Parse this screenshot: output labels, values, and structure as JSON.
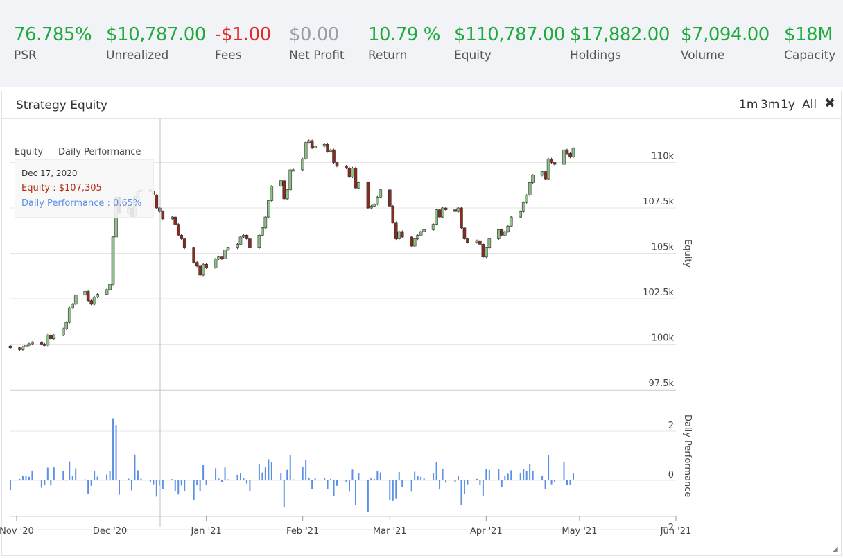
{
  "stats": [
    {
      "value": "76.785%",
      "label": "PSR",
      "color": "#1faa3d"
    },
    {
      "value": "$10,787.00",
      "label": "Unrealized",
      "color": "#1faa3d"
    },
    {
      "value": "-$1.00",
      "label": "Fees",
      "color": "#e02b2b"
    },
    {
      "value": "$0.00",
      "label": "Net Profit",
      "color": "#9aa0a6"
    },
    {
      "value": "10.79 %",
      "label": "Return",
      "color": "#1faa3d"
    },
    {
      "value": "$110,787.00",
      "label": "Equity",
      "color": "#1faa3d"
    },
    {
      "value": "$17,882.00",
      "label": "Holdings",
      "color": "#1faa3d"
    },
    {
      "value": "$7,094.00",
      "label": "Volume",
      "color": "#1faa3d"
    },
    {
      "value": "$18M",
      "label": "Capacity",
      "color": "#1faa3d"
    }
  ],
  "panel": {
    "title": "Strategy Equity",
    "ranges": [
      "1m",
      "3m",
      "1y",
      "All"
    ],
    "close": "✖"
  },
  "tooltip": {
    "date": "Dec 17, 2020",
    "equity": "Equity : $107,305",
    "daily": "Daily Performance : 0.65%"
  },
  "legend": [
    "Equity",
    "Daily Performance"
  ],
  "colors": {
    "up_candle": "#8fbf8a",
    "down_candle": "#8b2a1e",
    "wick": "#333333",
    "daily_bar": "#5c8fe6",
    "grid": "#e6e6e6"
  },
  "chart_data": [
    {
      "type": "candlestick",
      "ylabel": "Equity",
      "yticks": [
        "97.5k",
        "100k",
        "102.5k",
        "105k",
        "107.5k",
        "110k"
      ],
      "ylim": [
        97500,
        112500
      ],
      "xticks": [
        "Nov '20",
        "Dec '20",
        "Jan '21",
        "Feb '21",
        "Mar '21",
        "Apr '21",
        "May '21",
        "Jun '21"
      ],
      "xlim": [
        "2020-10-30",
        "2021-06-01"
      ],
      "close": [
        99800,
        99700,
        99850,
        99950,
        100020,
        100100,
        100000,
        99950,
        100500,
        100300,
        100500,
        100850,
        101200,
        102000,
        102200,
        102700,
        102900,
        102400,
        102200,
        102600,
        102750,
        103000,
        103300,
        105900,
        108100,
        107200,
        107500,
        107000,
        108100,
        108400,
        108500,
        108400,
        108200,
        107500,
        107300,
        106900,
        107000,
        106600,
        106000,
        105800,
        105300,
        104500,
        104300,
        103800,
        104400,
        104200,
        104700,
        104800,
        104700,
        105200,
        105300,
        105500,
        105900,
        106000,
        105800,
        105300,
        106000,
        106400,
        107000,
        107900,
        108700,
        109000,
        108000,
        108500,
        109600,
        109600,
        110200,
        111100,
        111200,
        110800,
        110900,
        111000,
        110600,
        110700,
        110000,
        109800,
        109700,
        109200,
        109700,
        108600,
        108900,
        107500,
        107600,
        107700,
        108100,
        108500,
        107600,
        106700,
        105800,
        106200,
        105900,
        105400,
        105800,
        106000,
        106200,
        106300,
        106600,
        107400,
        107000,
        107500,
        107400,
        107300,
        107500,
        106400,
        105800,
        105600,
        105700,
        105500,
        104800,
        105300,
        105800,
        106300,
        106000,
        106200,
        106500,
        107000,
        107300,
        107800,
        108200,
        108900,
        109300,
        109500,
        109100,
        110200,
        110000,
        109900,
        110700,
        110500,
        110300,
        110787
      ],
      "daily_performance": [
        -0.4,
        0.06,
        0.18,
        0.19,
        0.15,
        0.4,
        -0.3,
        -0.2,
        0.52,
        -0.2,
        0.53,
        0.37,
        0.02,
        0.77,
        0.2,
        0.49,
        0.04,
        -0.55,
        -0.22,
        0.39,
        0.15,
        0.24,
        0.39,
        2.52,
        2.25,
        -0.58,
        0.07,
        -0.41,
        1.05,
        0.41,
        0.07,
        -0.06,
        -0.16,
        -0.66,
        -0.21,
        -0.35,
        0.05,
        -0.44,
        -0.57,
        -0.21,
        -0.45,
        -0.81,
        -0.2,
        -0.45,
        0.62,
        -0.18,
        0.5,
        0.07,
        -0.08,
        0.53,
        0.04,
        0.23,
        0.29,
        0.08,
        -0.13,
        -0.43,
        0.66,
        0.32,
        0.53,
        0.86,
        0.76,
        0.28,
        -1.08,
        0.43,
        1.02,
        0.04,
        0.54,
        0.82,
        0.09,
        -0.36,
        0.08,
        0.09,
        -0.34,
        0.06,
        -0.63,
        -0.22,
        -0.07,
        -0.46,
        0.44,
        -1.0,
        0.28,
        -1.29,
        0.09,
        0.06,
        0.37,
        0.32,
        -0.8,
        -0.84,
        -0.75,
        0.34,
        -0.26,
        -0.46,
        0.35,
        0.17,
        0.15,
        0.09,
        0.28,
        0.75,
        -0.37,
        0.47,
        -0.1,
        -0.08,
        0.19,
        -1.01,
        -0.55,
        -0.16,
        0.06,
        -0.2,
        -0.62,
        0.47,
        0.43,
        0.45,
        -0.26,
        0.18,
        0.27,
        0.41,
        0.28,
        0.46,
        0.38,
        0.65,
        0.37,
        0.17,
        -0.34,
        1.04,
        -0.16,
        -0.08,
        0.76,
        -0.18,
        -0.18,
        0.3
      ]
    },
    {
      "type": "bar",
      "ylabel": "Daily Performance",
      "yticks": [
        "−2",
        "0",
        "2"
      ],
      "ylim": [
        -2,
        2.6
      ]
    }
  ]
}
